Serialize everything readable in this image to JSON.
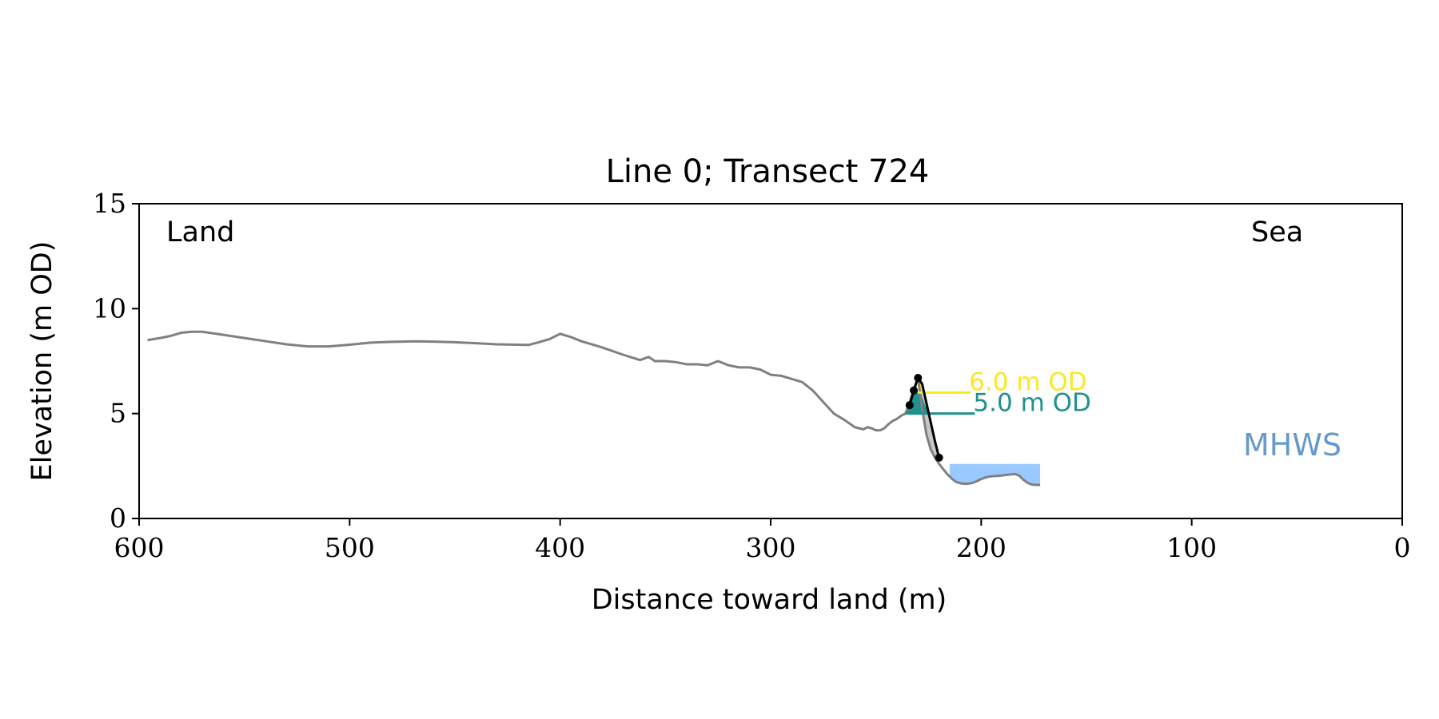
{
  "chart_data": {
    "type": "line",
    "title": "Line 0; Transect 724",
    "xlabel": "Distance toward land (m)",
    "ylabel": "Elevation (m OD)",
    "xlim": [
      600,
      0
    ],
    "ylim": [
      0,
      15
    ],
    "x_ticks": [
      600,
      500,
      400,
      300,
      200,
      100,
      0
    ],
    "y_ticks": [
      0,
      5,
      10,
      15
    ],
    "grid": false,
    "annotations": {
      "land": "Land",
      "sea": "Sea",
      "mhws": "MHWS",
      "level_6": "6.0 m OD",
      "level_5": "5.0 m OD"
    },
    "colors": {
      "profile": "#808080",
      "edge_line": "#000000",
      "level_6": "#fde725",
      "level_5": "#21918c",
      "mhws": "#6699cc",
      "water_fill": "#99c9ff",
      "shade_fill": "#c8c8c8"
    },
    "profile": {
      "x": [
        596,
        590,
        585,
        580,
        575,
        570,
        560,
        550,
        540,
        530,
        520,
        510,
        500,
        490,
        480,
        470,
        460,
        450,
        440,
        430,
        420,
        415,
        410,
        405,
        400,
        395,
        390,
        380,
        370,
        362,
        358,
        355,
        350,
        345,
        340,
        335,
        330,
        325,
        320,
        315,
        310,
        305,
        300,
        295,
        290,
        285,
        280,
        275,
        270,
        265,
        260,
        256,
        254,
        252,
        250,
        248,
        246,
        244,
        242,
        240,
        238,
        236,
        234,
        232,
        230,
        228,
        226,
        224,
        222,
        220,
        218,
        216,
        214,
        212,
        210,
        208,
        206,
        204,
        202,
        200,
        198,
        196,
        194,
        192,
        190,
        188,
        186,
        184,
        182,
        180,
        178,
        176,
        174,
        172
      ],
      "y": [
        8.5,
        8.6,
        8.7,
        8.85,
        8.9,
        8.9,
        8.75,
        8.6,
        8.45,
        8.3,
        8.2,
        8.2,
        8.28,
        8.38,
        8.42,
        8.44,
        8.43,
        8.4,
        8.35,
        8.3,
        8.28,
        8.27,
        8.4,
        8.55,
        8.8,
        8.65,
        8.45,
        8.15,
        7.8,
        7.55,
        7.7,
        7.5,
        7.5,
        7.45,
        7.35,
        7.35,
        7.3,
        7.5,
        7.3,
        7.2,
        7.2,
        7.1,
        6.85,
        6.8,
        6.65,
        6.5,
        6.1,
        5.55,
        5.0,
        4.7,
        4.35,
        4.25,
        4.35,
        4.3,
        4.2,
        4.2,
        4.3,
        4.5,
        4.65,
        4.75,
        4.9,
        5.0,
        5.5,
        6.2,
        6.7,
        5.2,
        4.0,
        3.3,
        2.9,
        2.6,
        2.35,
        2.1,
        1.9,
        1.75,
        1.68,
        1.65,
        1.66,
        1.7,
        1.78,
        1.88,
        1.95,
        2.0,
        2.02,
        2.03,
        2.05,
        2.08,
        2.1,
        2.12,
        2.05,
        1.85,
        1.7,
        1.62,
        1.6,
        1.6
      ]
    },
    "edge_line": {
      "x": [
        234,
        232,
        230,
        228,
        226,
        224,
        222,
        220
      ],
      "y": [
        5.4,
        6.1,
        6.7,
        6.4,
        5.5,
        4.6,
        3.7,
        2.9
      ]
    },
    "edge_points": {
      "x": [
        234,
        232,
        230,
        220
      ],
      "y": [
        5.4,
        6.1,
        6.7,
        2.9
      ]
    },
    "level_6": {
      "x_start": 230,
      "x_end": 205,
      "y": 6.0
    },
    "level_5": {
      "x_start": 236,
      "x_end": 203,
      "y": 5.0
    },
    "mhws_fill": {
      "x_start": 215,
      "x_end": 172,
      "y": 2.6
    }
  }
}
